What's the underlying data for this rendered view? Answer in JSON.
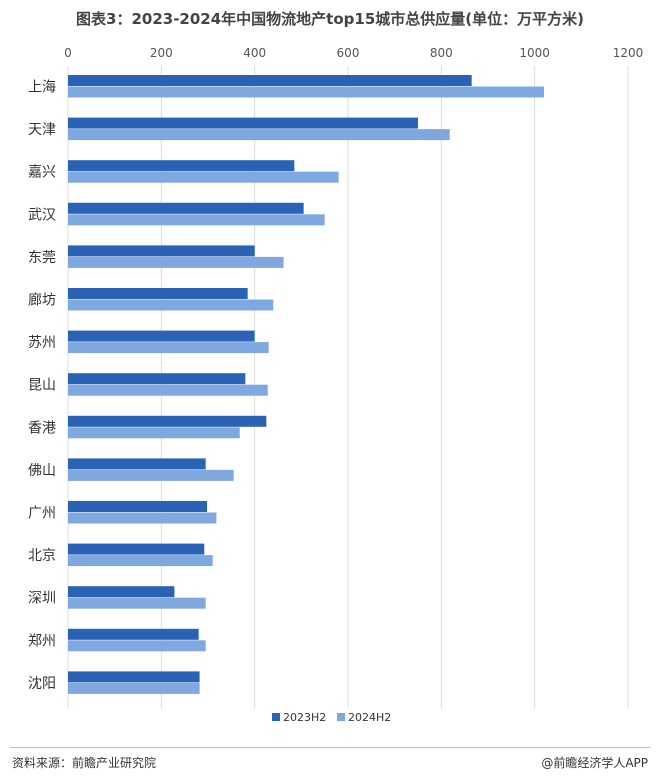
{
  "title": "图表3：2023-2024年中国物流地产top15城市总供应量(单位：万平方米)",
  "source": "资料来源：前瞻产业研究院",
  "brand": "@前瞻经济学人APP",
  "colors": {
    "series_2023": "#2a62b6",
    "series_2024": "#7fa8e0",
    "grid": "#dddddd",
    "axis_text": "#555555"
  },
  "chart_data": {
    "type": "bar",
    "orientation": "horizontal",
    "categories": [
      "上海",
      "天津",
      "嘉兴",
      "武汉",
      "东莞",
      "廊坊",
      "苏州",
      "昆山",
      "香港",
      "佛山",
      "广州",
      "北京",
      "深圳",
      "郑州",
      "沈阳"
    ],
    "series": [
      {
        "name": "2023H2",
        "values": [
          865,
          750,
          485,
          505,
          400,
          385,
          400,
          380,
          425,
          295,
          298,
          292,
          228,
          280,
          282
        ]
      },
      {
        "name": "2024H2",
        "values": [
          1020,
          818,
          580,
          550,
          462,
          440,
          430,
          428,
          368,
          355,
          318,
          310,
          295,
          295,
          282
        ]
      }
    ],
    "x_ticks": [
      "0",
      "200",
      "400",
      "600",
      "800",
      "1000",
      "1200"
    ],
    "xlim": [
      0,
      1200
    ],
    "x_axis_position": "top",
    "grid": true,
    "legend_position": "bottom"
  }
}
